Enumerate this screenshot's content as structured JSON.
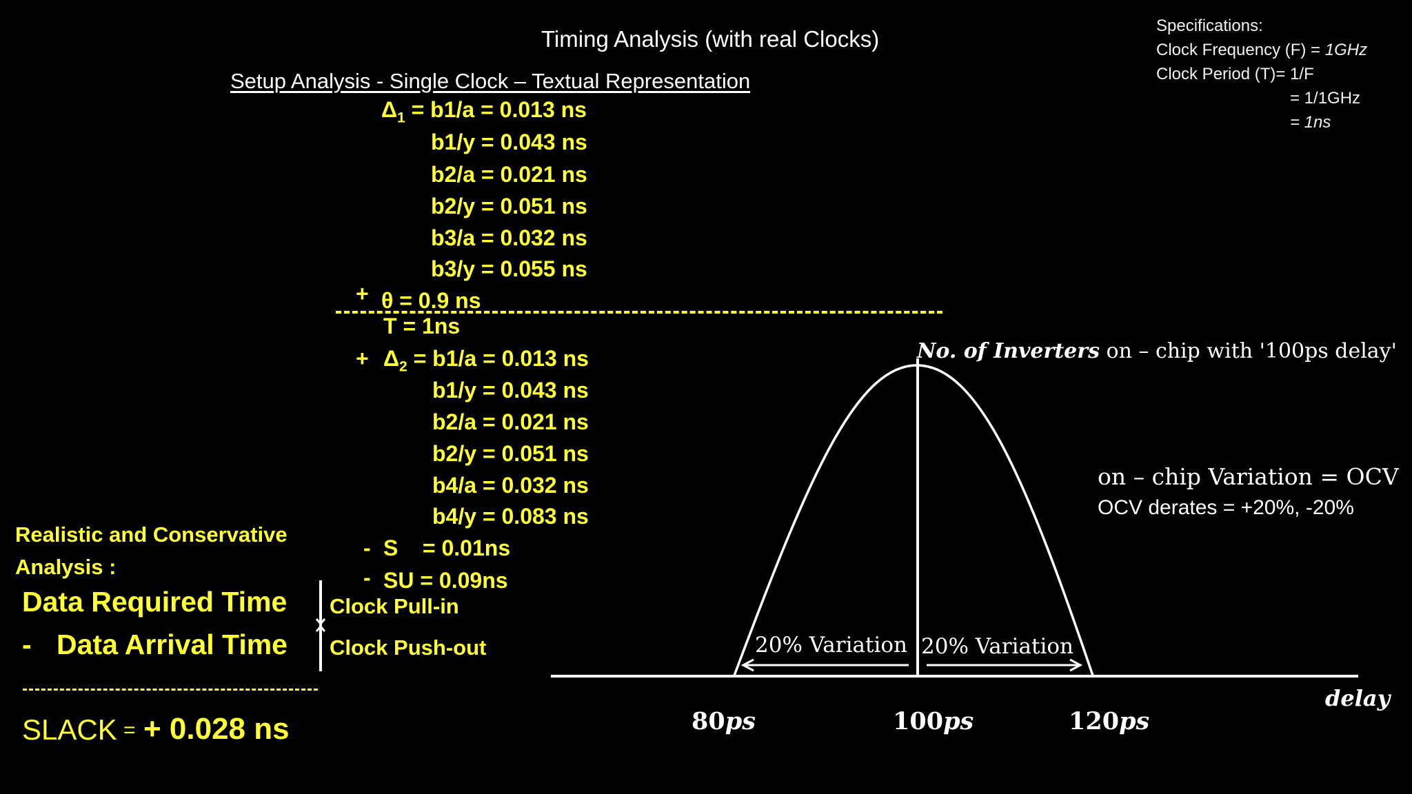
{
  "title": "Timing Analysis (with real Clocks)",
  "subtitle": "Setup Analysis - Single Clock – Textual Representation",
  "specifications": {
    "heading": "Specifications:",
    "frequency_label": "Clock Frequency (F) = ",
    "frequency_value": "1GHz",
    "period_label": "Clock Period (T)= 1/F",
    "period_step": "= 1/1GHz",
    "period_result": "= 1ns"
  },
  "launch_path": [
    {
      "prefix": "",
      "name": "Δ",
      "sub": "1",
      "expr": " = b1/a = 0.013 ns"
    },
    {
      "expr": "b1/y = 0.043 ns"
    },
    {
      "expr": "b2/a = 0.021 ns"
    },
    {
      "expr": "b2/y = 0.051 ns"
    },
    {
      "expr": "b3/a = 0.032 ns"
    },
    {
      "expr": "b3/y = 0.055 ns"
    },
    {
      "prefix": "+",
      "expr": "θ = 0.9 ns"
    }
  ],
  "capture_path": [
    {
      "expr": "T   = 1ns"
    },
    {
      "prefix": "+",
      "name": "Δ",
      "sub": "2",
      "expr": " = b1/a = 0.013 ns"
    },
    {
      "expr": "b1/y = 0.043 ns"
    },
    {
      "expr": "b2/a = 0.021 ns"
    },
    {
      "expr": "b2/y = 0.051 ns"
    },
    {
      "expr": "b4/a = 0.032 ns"
    },
    {
      "expr": "b4/y = 0.083 ns"
    },
    {
      "prefix": "-",
      "expr": "S    = 0.01ns"
    },
    {
      "prefix": "-",
      "expr": "SU = 0.09ns"
    }
  ],
  "analysis": {
    "label_line1": "Realistic and Conservative",
    "label_line2": "Analysis :",
    "required": "Data Required Time",
    "minus": "-",
    "arrival": "Data Arrival Time",
    "pull_in": "Clock Pull-in",
    "push_out": "Clock Push-out",
    "slack_label": "SLACK",
    "slack_equals": "=",
    "slack_value": "+ 0.028 ns"
  },
  "distribution": {
    "heading_italic": "No. of  Inverters",
    "heading_rest": " on – chip with '100ps delay'",
    "ocv_line1": "on – chip Variation = OCV",
    "ocv_line2": "OCV derates = +20%, -20%",
    "left_variation": "20% Variation",
    "right_variation": "20% Variation",
    "axis_label": "delay",
    "ticks": [
      {
        "num": "80",
        "unit": "ps"
      },
      {
        "num": "100",
        "unit": "ps"
      },
      {
        "num": "120",
        "unit": "ps"
      }
    ]
  },
  "colors": {
    "background": "#000000",
    "yellow": "#ffff33",
    "white": "#ffffff"
  }
}
